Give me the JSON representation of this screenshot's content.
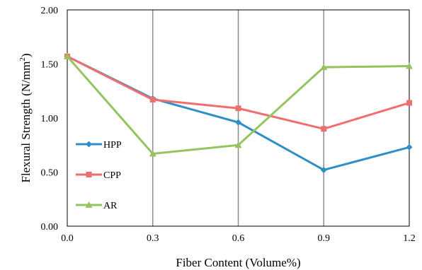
{
  "chart_data": {
    "type": "line",
    "x": [
      0.0,
      0.3,
      0.6,
      0.9,
      1.2
    ],
    "x_tick_labels": [
      "0.0",
      "0.3",
      "0.6",
      "0.9",
      "1.2"
    ],
    "y_tick_values": [
      0.0,
      0.5,
      1.0,
      1.5,
      2.0
    ],
    "y_tick_labels": [
      "0.00",
      "0.50",
      "1.00",
      "1.50",
      "2.00"
    ],
    "xlim": [
      0,
      1.2
    ],
    "ylim": [
      0,
      2.0
    ],
    "xlabel": "Fiber Content (Volume%)",
    "ylabel_main": "Flexural Strength (N/mm",
    "ylabel_sup": "2",
    "ylabel_end": ")",
    "grid": "vertical",
    "legend_position": "left",
    "series": [
      {
        "name": "HPP",
        "color": "#2E8EC7",
        "marker": "diamond",
        "values": [
          1.57,
          1.18,
          0.96,
          0.52,
          0.73
        ]
      },
      {
        "name": "CPP",
        "color": "#EF6E6E",
        "marker": "square",
        "values": [
          1.57,
          1.17,
          1.09,
          0.9,
          1.14
        ]
      },
      {
        "name": "AR",
        "color": "#95C45F",
        "marker": "triangle",
        "values": [
          1.57,
          0.67,
          0.75,
          1.47,
          1.48
        ]
      }
    ]
  }
}
